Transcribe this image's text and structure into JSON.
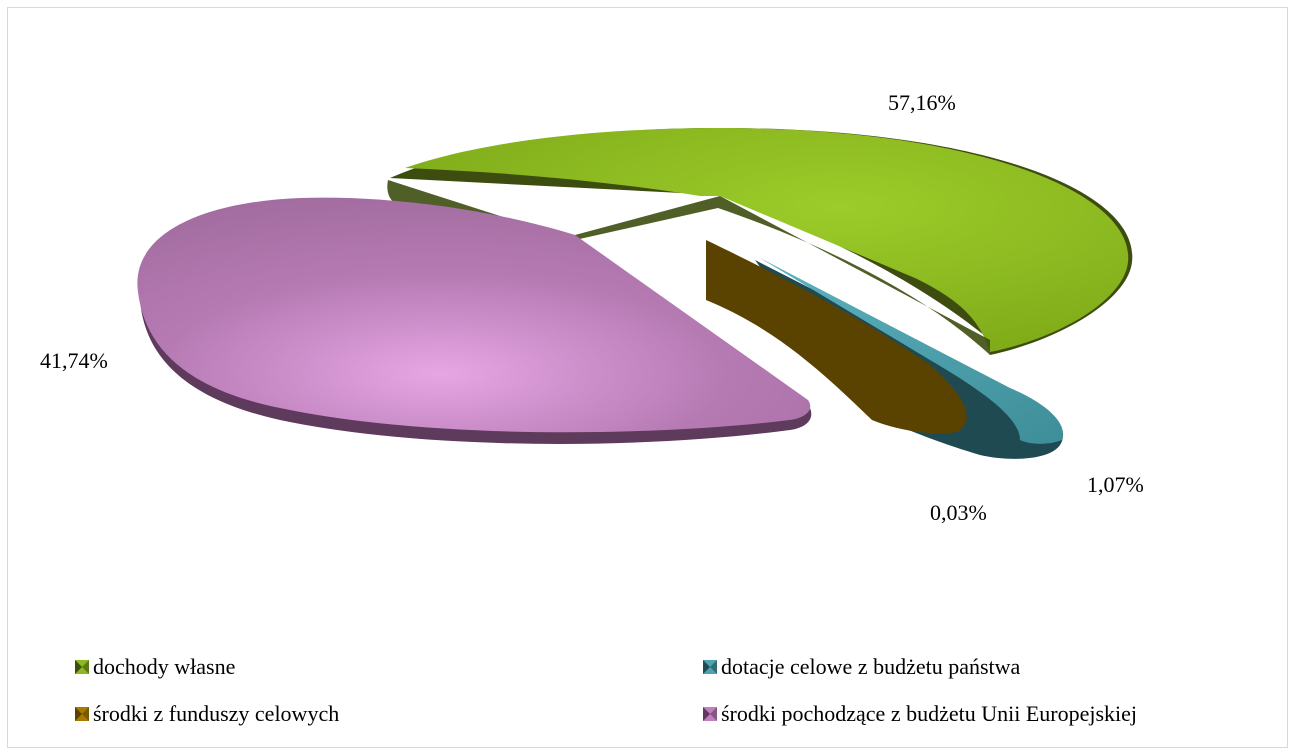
{
  "chart_data": {
    "type": "pie",
    "title": "",
    "style": "3d-exploded",
    "slices": [
      {
        "label": "dochody własne",
        "value": 57.16,
        "value_label": "57,16%",
        "color": "#8db81f",
        "side_color": "#3d4d10"
      },
      {
        "label": "dotacje celowe z budżetu państwa",
        "value": 1.07,
        "value_label": "1,07%",
        "color": "#4fa3b0",
        "side_color": "#1f4a52"
      },
      {
        "label": "środki z funduszy celowych",
        "value": 0.03,
        "value_label": "0,03%",
        "color": "#a87b00",
        "side_color": "#5a4300"
      },
      {
        "label": "środki pochodzące z budżetu Unii Europejskiej",
        "value": 41.74,
        "value_label": "41,74%",
        "color": "#c27fc0",
        "side_color": "#5e3a5c"
      }
    ],
    "legend": {
      "position": "bottom",
      "items": [
        "dochody własne",
        "dotacje celowe z budżetu państwa",
        "środki z funduszy celowych",
        "środki pochodzące z budżetu Unii Europejskiej"
      ]
    }
  }
}
